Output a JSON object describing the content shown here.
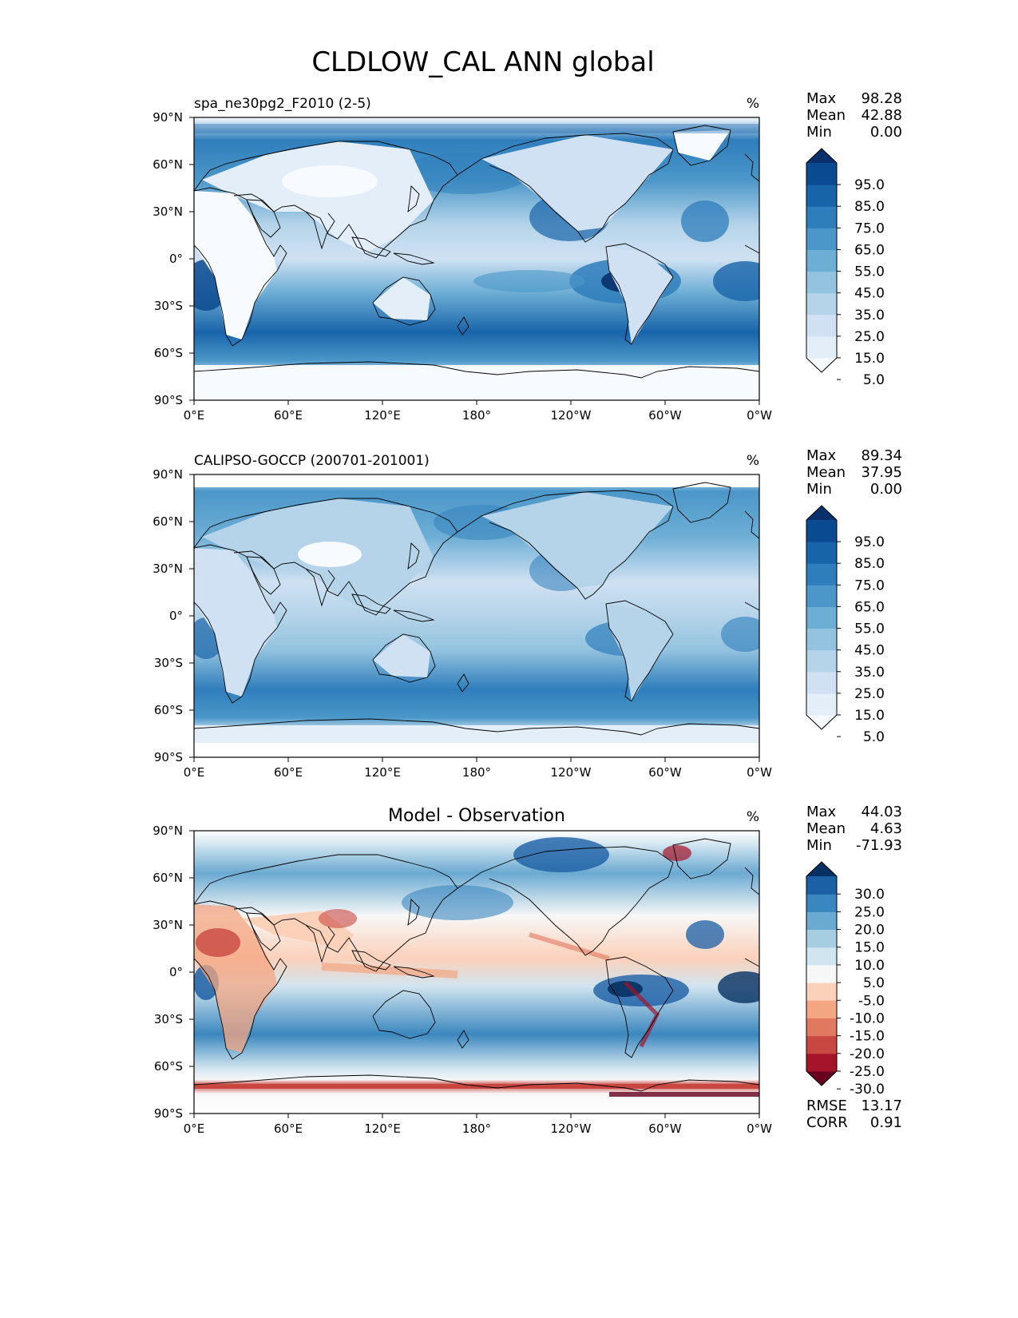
{
  "title": "CLDLOW_CAL ANN global",
  "x_ticks": [
    "0°E",
    "60°E",
    "120°E",
    "180°",
    "120°W",
    "60°W",
    "0°W"
  ],
  "y_ticks": [
    "90°N",
    "60°N",
    "30°N",
    "0°",
    "30°S",
    "60°S",
    "90°S"
  ],
  "panels": [
    {
      "id": "model",
      "left_title": "spa_ne30pg2_F2010 (2-5)",
      "center_title": "",
      "units": "%",
      "stats": {
        "max_label": "Max",
        "max": "98.28",
        "mean_label": "Mean",
        "mean": "42.88",
        "min_label": "Min",
        "min": "0.00"
      },
      "colorbar": {
        "ticks": [
          "95.0",
          "85.0",
          "75.0",
          "65.0",
          "55.0",
          "45.0",
          "35.0",
          "25.0",
          "15.0",
          "5.0"
        ],
        "colors": [
          "#f7fbff",
          "#e3eef9",
          "#cfe1f2",
          "#b5d4e9",
          "#93c3df",
          "#6daed5",
          "#4b97c9",
          "#2f7ebc",
          "#1864aa",
          "#0a4a90",
          "#08306b"
        ]
      }
    },
    {
      "id": "obs",
      "left_title": "CALIPSO-GOCCP (200701-201001)",
      "center_title": "",
      "units": "%",
      "stats": {
        "max_label": "Max",
        "max": "89.34",
        "mean_label": "Mean",
        "mean": "37.95",
        "min_label": "Min",
        "min": "0.00"
      },
      "colorbar": {
        "ticks": [
          "95.0",
          "85.0",
          "75.0",
          "65.0",
          "55.0",
          "45.0",
          "35.0",
          "25.0",
          "15.0",
          "5.0"
        ],
        "colors": [
          "#f7fbff",
          "#e3eef9",
          "#cfe1f2",
          "#b5d4e9",
          "#93c3df",
          "#6daed5",
          "#4b97c9",
          "#2f7ebc",
          "#1864aa",
          "#0a4a90",
          "#08306b"
        ]
      }
    },
    {
      "id": "diff",
      "left_title": "",
      "center_title": "Model - Observation",
      "units": "%",
      "stats": {
        "max_label": "Max",
        "max": "44.03",
        "mean_label": "Mean",
        "mean": "4.63",
        "min_label": "Min",
        "min": "-71.93"
      },
      "colorbar": {
        "ticks": [
          "30.0",
          "25.0",
          "20.0",
          "15.0",
          "10.0",
          "5.0",
          "-5.0",
          "-10.0",
          "-15.0",
          "-20.0",
          "-25.0",
          "-30.0"
        ],
        "colors": [
          "#67001f",
          "#a51429",
          "#c94741",
          "#e17860",
          "#f4a582",
          "#fbd1ba",
          "#f7f7f7",
          "#d1e5f0",
          "#a6cee3",
          "#6aa9d1",
          "#3a87bf",
          "#1b5fa5",
          "#053061"
        ]
      },
      "error_stats": {
        "rmse_label": "RMSE",
        "rmse": "13.17",
        "corr_label": "CORR",
        "corr": "0.91"
      }
    }
  ]
}
